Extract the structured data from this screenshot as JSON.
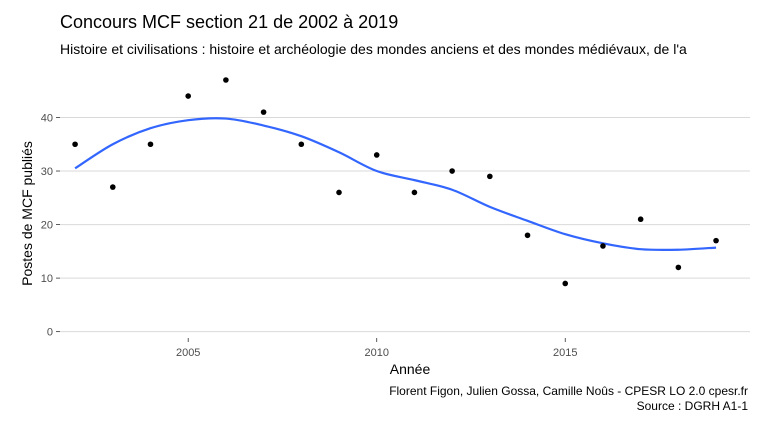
{
  "title": "Concours MCF section 21 de 2002 à 2019",
  "subtitle": "Histoire et civilisations : histoire et archéologie des mondes anciens et des mondes médiévaux, de l'a",
  "caption": {
    "line1": "Florent Figon, Julien Gossa, Camille Noûs - CPESR LO 2.0 cpesr.fr",
    "line2": "Source : DGRH A1-1"
  },
  "chart_data": {
    "type": "scatter",
    "title": "Concours MCF section 21 de 2002 à 2019",
    "xlabel": "Année",
    "ylabel": "Postes de MCF publiés",
    "xlim": [
      2001.6,
      2019.9
    ],
    "ylim": [
      -1,
      47
    ],
    "x_ticks": [
      2005,
      2010,
      2015
    ],
    "y_ticks": [
      0,
      10,
      20,
      30,
      40
    ],
    "grid": true,
    "points": {
      "x": [
        2002,
        2003,
        2004,
        2005,
        2006,
        2007,
        2008,
        2009,
        2010,
        2011,
        2012,
        2013,
        2014,
        2015,
        2016,
        2017,
        2018,
        2019
      ],
      "y": [
        35,
        27,
        35,
        44,
        47,
        41,
        35,
        26,
        33,
        26,
        30,
        29,
        18,
        9,
        16,
        21,
        12,
        17
      ]
    },
    "smooth": {
      "x": [
        2002,
        2003,
        2004,
        2005,
        2006,
        2007,
        2008,
        2009,
        2010,
        2011,
        2012,
        2013,
        2014,
        2015,
        2016,
        2017,
        2018,
        2019
      ],
      "y": [
        30.5,
        35,
        38,
        39.5,
        39.8,
        38.5,
        36.5,
        33.5,
        30,
        28.3,
        26.5,
        23.3,
        20.7,
        18.2,
        16.5,
        15.4,
        15.3,
        15.7
      ]
    },
    "colors": {
      "points": "#000000",
      "smooth": "#3366ff",
      "grid": "#d9d9d9"
    }
  }
}
